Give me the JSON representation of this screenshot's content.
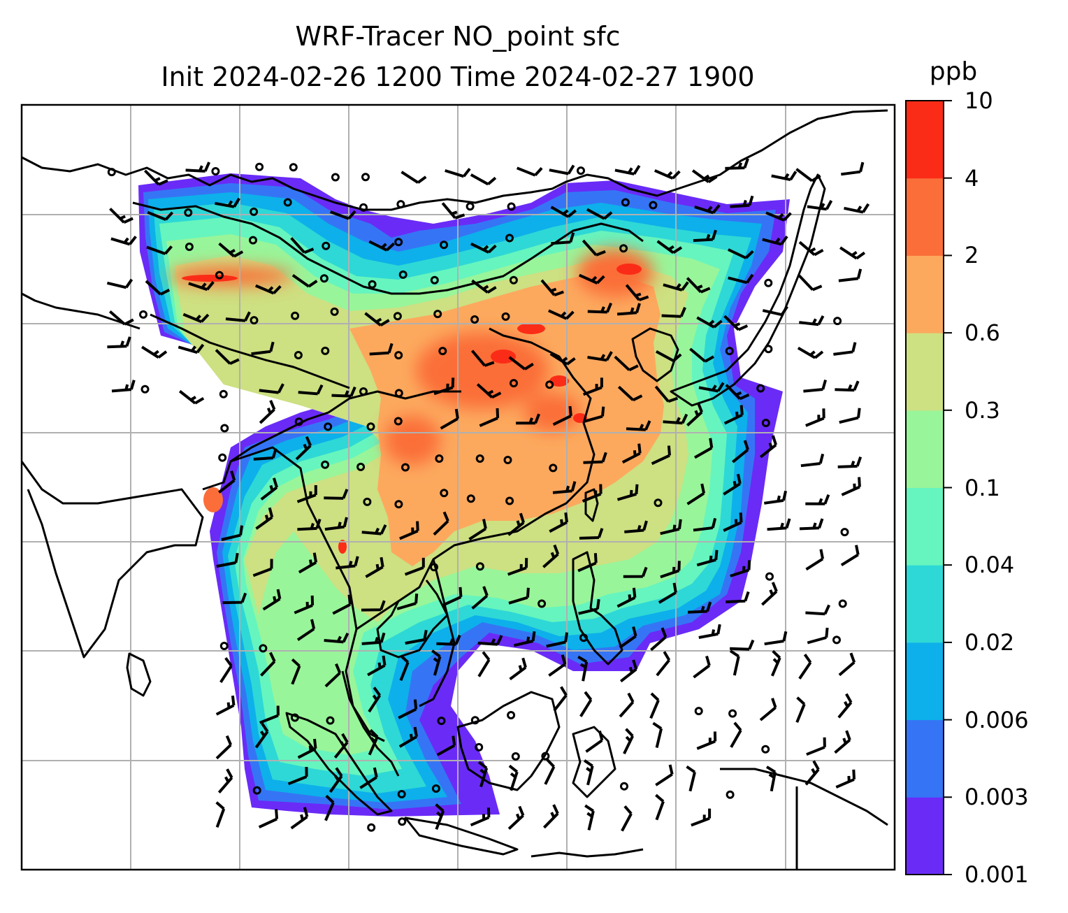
{
  "title": {
    "line1": "WRF-Tracer NO_point sfc",
    "line2": "Init 2024-02-26 1200 Time 2024-02-27 1900"
  },
  "colorbar": {
    "unit": "ppb",
    "ticks": [
      "0.001",
      "0.003",
      "0.006",
      "0.02",
      "0.04",
      "0.1",
      "0.3",
      "0.6",
      "2",
      "4",
      "10"
    ],
    "colors": [
      "#6a2bf7",
      "#3575f5",
      "#0db0ea",
      "#2ed8d6",
      "#66f5be",
      "#99f59a",
      "#cde082",
      "#fca95e",
      "#fb6e39",
      "#fb2c17"
    ]
  },
  "map": {
    "grid_color": "#b0b0b0",
    "coastline_color": "#000000",
    "missing_color": "#ffffff"
  },
  "wind": {
    "calm_symbol": "circle",
    "barb_color": "#000000"
  }
}
